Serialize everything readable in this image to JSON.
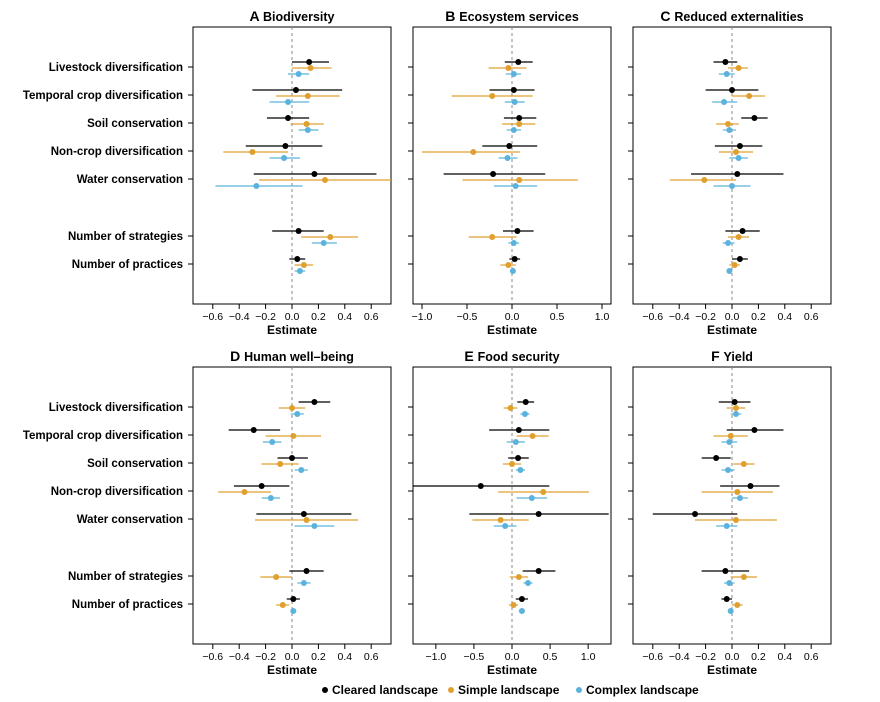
{
  "figure": {
    "row_labels": [
      "Livestock diversification",
      "Temporal crop diversification",
      "Soil conservation",
      "Non-crop diversification",
      "Water conservation",
      "Number of strategies",
      "Number of practices"
    ],
    "legend": [
      {
        "label": "Cleared landscape",
        "color": "#000000"
      },
      {
        "label": "Simple landscape",
        "color": "#E0A030"
      },
      {
        "label": "Complex landscape",
        "color": "#5BB3DD"
      }
    ]
  },
  "chart_data": [
    {
      "type": "forest",
      "letter": "A",
      "title": "Biodiversity",
      "xlabel": "Estimate",
      "xlim": [
        -0.75,
        0.75
      ],
      "xticks": [
        -0.6,
        -0.4,
        -0.2,
        0.0,
        0.2,
        0.4,
        0.6
      ],
      "xtick_labels": [
        "−0.6",
        "−0.4",
        "−0.2",
        "0.0",
        "0.2",
        "0.4",
        "0.6"
      ],
      "series": [
        {
          "name": "Cleared landscape",
          "estimates": [
            0.13,
            0.03,
            -0.03,
            -0.05,
            0.17,
            0.05,
            0.04
          ],
          "lower": [
            0.0,
            -0.3,
            -0.19,
            -0.35,
            -0.29,
            -0.15,
            -0.02
          ],
          "upper": [
            0.28,
            0.38,
            0.13,
            0.23,
            0.64,
            0.24,
            0.1
          ]
        },
        {
          "name": "Simple landscape",
          "estimates": [
            0.14,
            0.12,
            0.11,
            -0.3,
            0.25,
            0.29,
            0.09
          ],
          "lower": [
            0.0,
            -0.12,
            -0.01,
            -0.52,
            -0.25,
            0.07,
            0.02
          ],
          "upper": [
            0.3,
            0.36,
            0.24,
            -0.03,
            0.75,
            0.5,
            0.16
          ]
        },
        {
          "name": "Complex landscape",
          "estimates": [
            0.05,
            -0.03,
            0.12,
            -0.06,
            -0.27,
            0.24,
            0.06
          ],
          "lower": [
            -0.03,
            -0.17,
            0.05,
            -0.17,
            -0.58,
            0.15,
            0.02
          ],
          "upper": [
            0.13,
            0.13,
            0.2,
            0.06,
            0.08,
            0.34,
            0.1
          ]
        }
      ]
    },
    {
      "type": "forest",
      "letter": "B",
      "title": "Ecosystem services",
      "xlabel": "Estimate",
      "xlim": [
        -1.1,
        1.1
      ],
      "xticks": [
        -1.0,
        -0.5,
        0.0,
        0.5,
        1.0
      ],
      "xtick_labels": [
        "−1.0",
        "−0.5",
        "0.0",
        "0.5",
        "1.0"
      ],
      "series": [
        {
          "name": "Cleared landscape",
          "estimates": [
            0.07,
            0.02,
            0.08,
            -0.03,
            -0.21,
            0.06,
            0.03
          ],
          "lower": [
            -0.08,
            -0.25,
            -0.09,
            -0.33,
            -0.76,
            -0.1,
            -0.03
          ],
          "upper": [
            0.23,
            0.25,
            0.27,
            0.28,
            0.37,
            0.24,
            0.09
          ]
        },
        {
          "name": "Simple landscape",
          "estimates": [
            -0.04,
            -0.22,
            0.08,
            -0.43,
            0.08,
            -0.22,
            -0.04
          ],
          "lower": [
            -0.26,
            -0.67,
            -0.11,
            -1.0,
            -0.55,
            -0.48,
            -0.13
          ],
          "upper": [
            0.16,
            0.23,
            0.26,
            0.09,
            0.73,
            0.05,
            0.04
          ]
        },
        {
          "name": "Complex landscape",
          "estimates": [
            0.02,
            0.03,
            0.02,
            -0.05,
            0.04,
            0.02,
            0.01
          ],
          "lower": [
            -0.07,
            -0.08,
            -0.06,
            -0.15,
            -0.2,
            -0.04,
            -0.02
          ],
          "upper": [
            0.1,
            0.14,
            0.1,
            0.06,
            0.28,
            0.08,
            0.04
          ]
        }
      ]
    },
    {
      "type": "forest",
      "letter": "C",
      "title": "Reduced externalities",
      "xlabel": "Estimate",
      "xlim": [
        -0.75,
        0.75
      ],
      "xticks": [
        -0.6,
        -0.4,
        -0.2,
        0.0,
        0.2,
        0.4,
        0.6
      ],
      "xtick_labels": [
        "−0.6",
        "−0.4",
        "−0.2",
        "0.0",
        "0.2",
        "0.4",
        "0.6"
      ],
      "series": [
        {
          "name": "Cleared landscape",
          "estimates": [
            -0.05,
            0.0,
            0.17,
            0.06,
            0.04,
            0.08,
            0.06
          ],
          "lower": [
            -0.14,
            -0.2,
            0.07,
            -0.13,
            -0.31,
            -0.05,
            0.0
          ],
          "upper": [
            0.04,
            0.2,
            0.27,
            0.23,
            0.39,
            0.21,
            0.12
          ]
        },
        {
          "name": "Simple landscape",
          "estimates": [
            0.05,
            0.13,
            -0.03,
            0.03,
            -0.21,
            0.05,
            0.02
          ],
          "lower": [
            -0.03,
            0.0,
            -0.12,
            -0.1,
            -0.47,
            -0.03,
            -0.02
          ],
          "upper": [
            0.12,
            0.25,
            0.05,
            0.16,
            0.03,
            0.13,
            0.06
          ]
        },
        {
          "name": "Complex landscape",
          "estimates": [
            -0.04,
            -0.06,
            -0.02,
            0.05,
            0.0,
            -0.03,
            -0.02
          ],
          "lower": [
            -0.1,
            -0.15,
            -0.07,
            -0.02,
            -0.14,
            -0.07,
            -0.04
          ],
          "upper": [
            0.02,
            0.04,
            0.03,
            0.12,
            0.14,
            0.02,
            0.0
          ]
        }
      ]
    },
    {
      "type": "forest",
      "letter": "D",
      "title": "Human well–being",
      "xlabel": "Estimate",
      "xlim": [
        -0.75,
        0.75
      ],
      "xticks": [
        -0.6,
        -0.4,
        -0.2,
        0.0,
        0.2,
        0.4,
        0.6
      ],
      "xtick_labels": [
        "−0.6",
        "−0.4",
        "−0.2",
        "0.0",
        "0.2",
        "0.4",
        "0.6"
      ],
      "series": [
        {
          "name": "Cleared landscape",
          "estimates": [
            0.17,
            -0.29,
            0.0,
            -0.23,
            0.09,
            0.11,
            0.01
          ],
          "lower": [
            0.05,
            -0.48,
            -0.11,
            -0.44,
            -0.27,
            -0.02,
            -0.04
          ],
          "upper": [
            0.29,
            -0.09,
            0.12,
            -0.02,
            0.45,
            0.24,
            0.06
          ]
        },
        {
          "name": "Simple landscape",
          "estimates": [
            0.0,
            0.01,
            -0.09,
            -0.36,
            0.11,
            -0.12,
            -0.07
          ],
          "lower": [
            -0.1,
            -0.2,
            -0.23,
            -0.56,
            -0.28,
            -0.24,
            -0.12
          ],
          "upper": [
            0.1,
            0.22,
            0.05,
            -0.16,
            0.5,
            0.0,
            -0.02
          ]
        },
        {
          "name": "Complex landscape",
          "estimates": [
            0.04,
            -0.15,
            0.07,
            -0.16,
            0.17,
            0.09,
            0.01
          ],
          "lower": [
            -0.01,
            -0.22,
            0.02,
            -0.23,
            0.02,
            0.04,
            -0.01
          ],
          "upper": [
            0.09,
            -0.08,
            0.12,
            -0.09,
            0.32,
            0.14,
            0.03
          ]
        }
      ]
    },
    {
      "type": "forest",
      "letter": "E",
      "title": "Food security",
      "xlabel": "Estimate",
      "xlim": [
        -1.3,
        1.3
      ],
      "xticks": [
        -1.0,
        -0.5,
        0.0,
        0.5,
        1.0
      ],
      "xtick_labels": [
        "−1.0",
        "−0.5",
        "0.0",
        "0.5",
        "1.0"
      ],
      "series": [
        {
          "name": "Cleared landscape",
          "estimates": [
            0.18,
            0.09,
            0.08,
            -0.41,
            0.35,
            0.35,
            0.13
          ],
          "lower": [
            0.07,
            -0.3,
            -0.05,
            -1.3,
            -0.56,
            0.14,
            0.05
          ],
          "upper": [
            0.29,
            0.49,
            0.22,
            0.49,
            1.27,
            0.57,
            0.21
          ]
        },
        {
          "name": "Simple landscape",
          "estimates": [
            -0.02,
            0.27,
            0.0,
            0.41,
            -0.15,
            0.09,
            0.02
          ],
          "lower": [
            -0.11,
            0.06,
            -0.12,
            -0.18,
            -0.52,
            -0.03,
            -0.04
          ],
          "upper": [
            0.07,
            0.48,
            0.12,
            1.01,
            0.22,
            0.21,
            0.08
          ]
        },
        {
          "name": "Complex landscape",
          "estimates": [
            0.17,
            0.05,
            0.11,
            0.26,
            -0.09,
            0.21,
            0.13
          ],
          "lower": [
            0.11,
            -0.07,
            0.05,
            0.06,
            -0.24,
            0.15,
            0.09
          ],
          "upper": [
            0.23,
            0.17,
            0.17,
            0.46,
            0.06,
            0.27,
            0.17
          ]
        }
      ]
    },
    {
      "type": "forest",
      "letter": "F",
      "title": "Yield",
      "xlabel": "Estimate",
      "xlim": [
        -0.75,
        0.75
      ],
      "xticks": [
        -0.6,
        -0.4,
        -0.2,
        0.0,
        0.2,
        0.4,
        0.6
      ],
      "xtick_labels": [
        "−0.6",
        "−0.4",
        "−0.2",
        "0.0",
        "0.2",
        "0.4",
        "0.6"
      ],
      "series": [
        {
          "name": "Cleared landscape",
          "estimates": [
            0.02,
            0.17,
            -0.12,
            0.14,
            -0.28,
            -0.05,
            -0.04
          ],
          "lower": [
            -0.1,
            -0.04,
            -0.23,
            -0.09,
            -0.6,
            -0.23,
            -0.08
          ],
          "upper": [
            0.14,
            0.39,
            -0.01,
            0.36,
            0.04,
            0.13,
            0.0
          ]
        },
        {
          "name": "Simple landscape",
          "estimates": [
            0.03,
            -0.01,
            0.09,
            0.04,
            0.03,
            0.09,
            0.04
          ],
          "lower": [
            -0.04,
            -0.14,
            0.01,
            -0.23,
            -0.28,
            -0.01,
            0.0
          ],
          "upper": [
            0.1,
            0.12,
            0.17,
            0.31,
            0.34,
            0.19,
            0.08
          ]
        },
        {
          "name": "Complex landscape",
          "estimates": [
            0.03,
            -0.02,
            -0.03,
            0.06,
            -0.04,
            -0.02,
            -0.01
          ],
          "lower": [
            -0.01,
            -0.08,
            -0.08,
            0.0,
            -0.12,
            -0.06,
            -0.03
          ],
          "upper": [
            0.07,
            0.04,
            0.02,
            0.12,
            0.04,
            0.02,
            0.01
          ]
        }
      ]
    }
  ]
}
